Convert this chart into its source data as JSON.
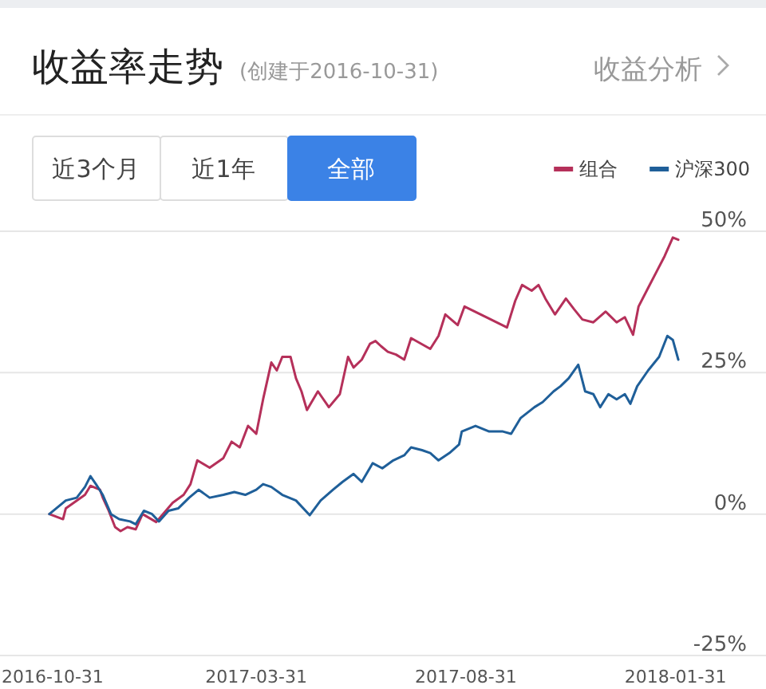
{
  "chart_data": {
    "type": "line",
    "title": "收益率走势",
    "subtitle": "(创建于2016-10-31)",
    "annotations": [
      "收益分析",
      "近3个月",
      "近1年",
      "全部"
    ],
    "xlim": [
      "2016-09-25",
      "2018-04-07"
    ],
    "xticks": [
      "2016-10-31",
      "2017-03-31",
      "2017-08-31",
      "2018-01-31"
    ],
    "ylim": [
      -25,
      50
    ],
    "yticks": [
      {
        "value": 50,
        "label": "50%"
      },
      {
        "value": 25,
        "label": "25%"
      },
      {
        "value": 0,
        "label": "0%"
      },
      {
        "value": -25,
        "label": "-25%"
      }
    ],
    "grid": "y",
    "legend": "top right",
    "series": [
      {
        "name": "组合",
        "color": "#b5305a",
        "x": [
          "2016-10-31",
          "2016-11-10",
          "2016-11-12",
          "2016-11-26",
          "2016-11-30",
          "2016-12-07",
          "2016-12-09",
          "2016-12-13",
          "2016-12-18",
          "2016-12-22",
          "2016-12-27",
          "2017-01-02",
          "2017-01-07",
          "2017-01-17",
          "2017-01-29",
          "2017-02-06",
          "2017-02-11",
          "2017-02-16",
          "2017-02-25",
          "2017-03-07",
          "2017-03-13",
          "2017-03-19",
          "2017-03-25",
          "2017-03-31",
          "2017-04-05",
          "2017-04-11",
          "2017-04-15",
          "2017-04-19",
          "2017-04-25",
          "2017-04-29",
          "2017-05-03",
          "2017-05-07",
          "2017-05-15",
          "2017-05-23",
          "2017-05-31",
          "2017-06-06",
          "2017-06-10",
          "2017-06-16",
          "2017-06-22",
          "2017-06-26",
          "2017-06-30",
          "2017-07-05",
          "2017-07-11",
          "2017-07-17",
          "2017-07-22",
          "2017-08-05",
          "2017-08-11",
          "2017-08-16",
          "2017-08-25",
          "2017-08-30",
          "2017-09-15",
          "2017-09-30",
          "2017-10-06",
          "2017-10-11",
          "2017-10-18",
          "2017-10-23",
          "2017-10-28",
          "2017-11-04",
          "2017-11-12",
          "2017-11-18",
          "2017-11-24",
          "2017-12-02",
          "2017-12-11",
          "2017-12-19",
          "2017-12-25",
          "2017-12-31",
          "2018-01-04",
          "2018-01-11",
          "2018-01-17",
          "2018-01-23",
          "2018-01-29",
          "2018-02-02"
        ],
        "values": [
          0,
          -0.9,
          1.0,
          3.4,
          5.0,
          4.3,
          2.9,
          0.8,
          -2.3,
          -3.0,
          -2.3,
          -2.7,
          0,
          -1.4,
          2.0,
          3.4,
          5.3,
          9.5,
          8.2,
          9.9,
          12.8,
          11.8,
          15.6,
          14.2,
          20.3,
          26.8,
          25.4,
          27.8,
          27.8,
          24.0,
          21.7,
          18.4,
          21.7,
          18.9,
          21.2,
          27.8,
          25.9,
          27.3,
          30.1,
          30.6,
          29.7,
          28.7,
          28.2,
          27.3,
          31.1,
          29.2,
          31.5,
          35.3,
          33.4,
          36.7,
          34.8,
          33.0,
          37.7,
          40.5,
          39.5,
          40.5,
          38.1,
          35.3,
          38.1,
          36.2,
          34.4,
          33.9,
          35.8,
          33.9,
          34.8,
          31.7,
          36.7,
          40.0,
          42.8,
          45.6,
          48.9,
          48.5
        ]
      },
      {
        "name": "沪深300",
        "color": "#1f5f99",
        "x": [
          "2016-10-31",
          "2016-11-12",
          "2016-11-20",
          "2016-11-26",
          "2016-11-30",
          "2016-12-04",
          "2016-12-09",
          "2016-12-15",
          "2016-12-21",
          "2016-12-29",
          "2017-01-02",
          "2017-01-08",
          "2017-01-14",
          "2017-01-19",
          "2017-01-26",
          "2017-02-02",
          "2017-02-10",
          "2017-02-17",
          "2017-02-25",
          "2017-03-07",
          "2017-03-15",
          "2017-03-23",
          "2017-03-31",
          "2017-04-05",
          "2017-04-11",
          "2017-04-19",
          "2017-04-29",
          "2017-05-09",
          "2017-05-17",
          "2017-05-26",
          "2017-06-02",
          "2017-06-10",
          "2017-06-16",
          "2017-06-24",
          "2017-07-01",
          "2017-07-09",
          "2017-07-17",
          "2017-07-22",
          "2017-07-30",
          "2017-08-05",
          "2017-08-11",
          "2017-08-19",
          "2017-08-26",
          "2017-08-28",
          "2017-09-07",
          "2017-09-17",
          "2017-09-27",
          "2017-10-03",
          "2017-10-10",
          "2017-10-20",
          "2017-10-26",
          "2017-11-03",
          "2017-11-08",
          "2017-11-14",
          "2017-11-21",
          "2017-11-26",
          "2017-12-02",
          "2017-12-07",
          "2017-12-13",
          "2017-12-19",
          "2017-12-25",
          "2017-12-29",
          "2018-01-03",
          "2018-01-11",
          "2018-01-19",
          "2018-01-25",
          "2018-01-29",
          "2018-02-02"
        ],
        "values": [
          0,
          2.4,
          2.9,
          4.8,
          6.7,
          5.3,
          3.4,
          0,
          -0.9,
          -1.3,
          -1.8,
          0.6,
          0,
          -1.3,
          0.6,
          1.0,
          2.9,
          4.3,
          2.9,
          3.4,
          3.9,
          3.4,
          4.3,
          5.3,
          4.8,
          3.4,
          2.4,
          -0.2,
          2.4,
          4.3,
          5.7,
          7.1,
          5.7,
          9.0,
          8.1,
          9.5,
          10.4,
          11.8,
          11.3,
          10.8,
          9.5,
          10.8,
          12.3,
          14.6,
          15.6,
          14.6,
          14.6,
          14.2,
          17.0,
          18.9,
          19.8,
          21.7,
          22.6,
          24.0,
          26.4,
          21.7,
          21.2,
          18.9,
          21.2,
          20.3,
          21.2,
          19.5,
          22.6,
          25.4,
          27.8,
          31.5,
          30.8,
          27.3
        ]
      }
    ]
  }
}
